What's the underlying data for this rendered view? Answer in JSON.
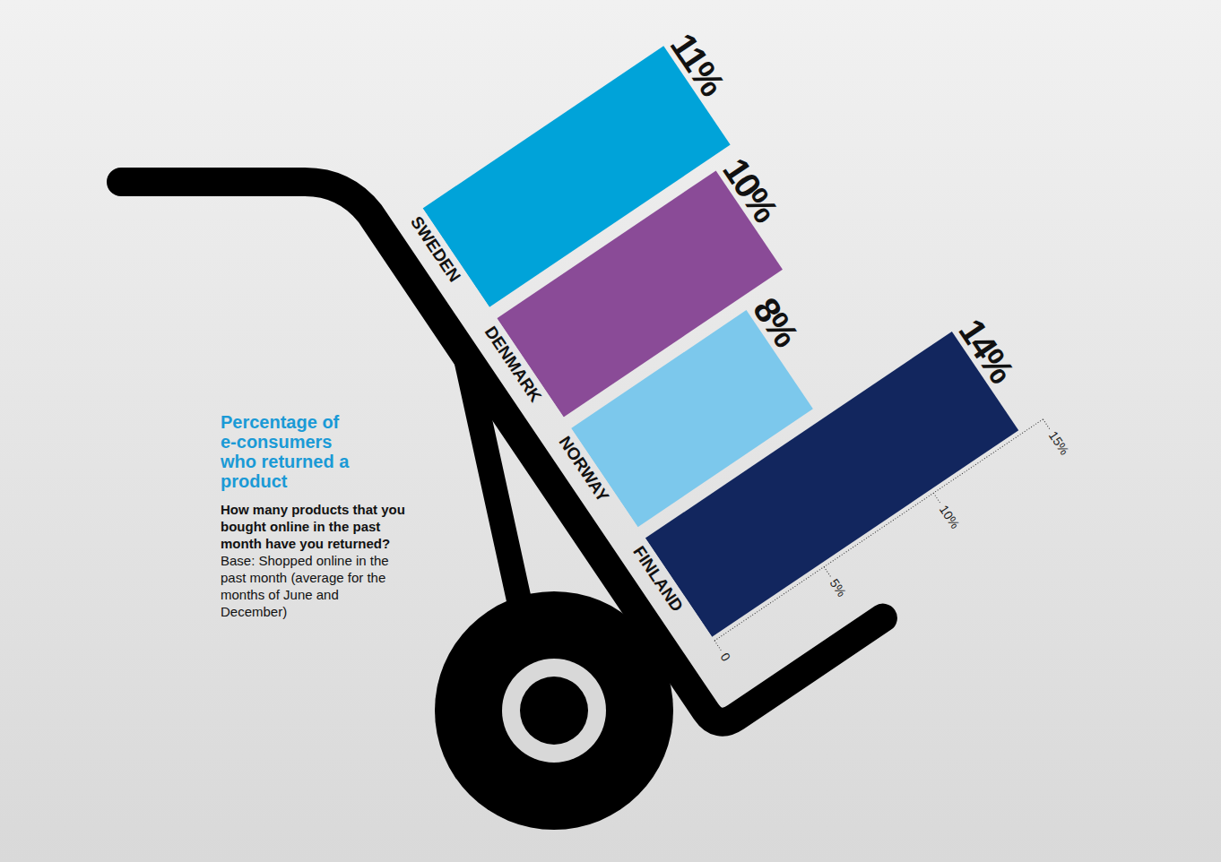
{
  "chart_data": {
    "type": "bar",
    "orientation": "horizontal",
    "title": "Percentage of e-consumers who returned a product",
    "subtitle": "How many products that you bought online in the past month have you returned?",
    "annotations": [
      "Base: Shopped online in the past month (average for the months of June and December)"
    ],
    "categories": [
      "SWEDEN",
      "DENMARK",
      "NORWAY",
      "FINLAND"
    ],
    "values": [
      11,
      10,
      8,
      14
    ],
    "value_labels": [
      "11%",
      "10%",
      "8%",
      "14%"
    ],
    "colors": [
      "#00a3d9",
      "#8a4b97",
      "#7cc8ec",
      "#12265e"
    ],
    "ylim": [
      0,
      15
    ],
    "yticks": [
      0,
      {
        "value": 5,
        "label": "5%"
      },
      {
        "value": 10,
        "label": "10%"
      },
      {
        "value": 15,
        "label": "15%"
      }
    ],
    "data_labels": true,
    "grid": false
  }
}
